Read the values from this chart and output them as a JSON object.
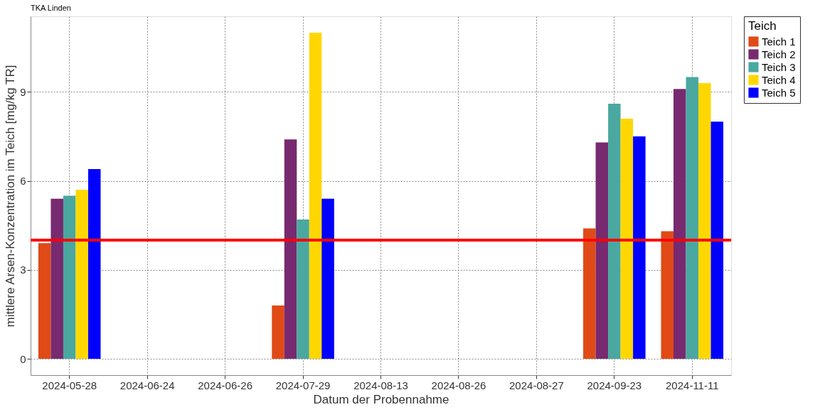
{
  "chart_data": {
    "type": "bar",
    "title": "TKA Linden",
    "xlabel": "Datum der Probennahme",
    "ylabel": "mittlere Arsen-Konzentration im Teich [mg/kg TR]",
    "legend_title": "Teich",
    "categories": [
      "2024-05-28",
      "2024-06-24",
      "2024-06-26",
      "2024-07-29",
      "2024-08-13",
      "2024-08-26",
      "2024-08-27",
      "2024-09-23",
      "2024-11-11"
    ],
    "series": [
      {
        "name": "Teich 1",
        "color": "#e04a17",
        "values": [
          3.9,
          null,
          null,
          1.8,
          null,
          null,
          null,
          4.4,
          4.3
        ]
      },
      {
        "name": "Teich 2",
        "color": "#772a6f",
        "values": [
          5.4,
          null,
          null,
          7.4,
          null,
          null,
          null,
          7.3,
          9.1
        ]
      },
      {
        "name": "Teich 3",
        "color": "#4aa8a0",
        "values": [
          5.5,
          null,
          null,
          4.7,
          null,
          null,
          null,
          8.6,
          9.5
        ]
      },
      {
        "name": "Teich 4",
        "color": "#ffd700",
        "values": [
          5.7,
          null,
          null,
          11.0,
          null,
          null,
          null,
          8.1,
          9.3
        ]
      },
      {
        "name": "Teich 5",
        "color": "#0000ff",
        "values": [
          6.4,
          null,
          null,
          5.4,
          null,
          null,
          null,
          7.5,
          8.0
        ]
      }
    ],
    "ylim": [
      -0.55,
      11.55
    ],
    "yticks": [
      0,
      3,
      6,
      9
    ],
    "grid": true,
    "legend": "right",
    "ref_lines": [
      {
        "axis": "y",
        "value": 4,
        "color": "#ff0000"
      }
    ]
  }
}
